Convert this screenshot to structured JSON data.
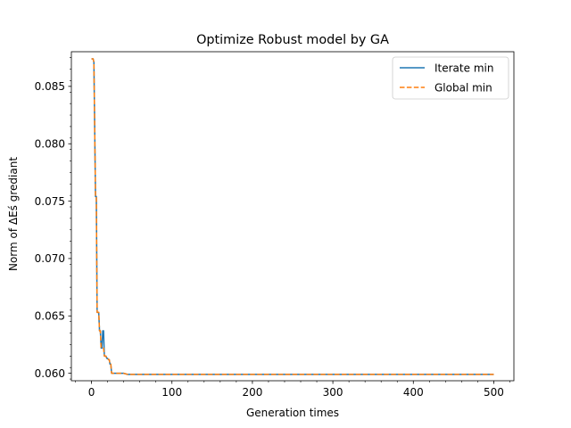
{
  "chart_data": {
    "type": "line",
    "title": "Optimize Robust model by GA",
    "xlabel": "Generation times",
    "ylabel": "Norm of ΔEś grediant",
    "xlim": [
      -25,
      525
    ],
    "ylim": [
      0.05935,
      0.08802
    ],
    "xticks": [
      0,
      100,
      200,
      300,
      400,
      500
    ],
    "xtick_labels": [
      "0",
      "100",
      "200",
      "300",
      "400",
      "500"
    ],
    "yticks": [
      0.06,
      0.065,
      0.07,
      0.075,
      0.08,
      0.085
    ],
    "ytick_labels": [
      "0.060",
      "0.065",
      "0.070",
      "0.075",
      "0.080",
      "0.085"
    ],
    "grid": false,
    "legend_position": "upper right",
    "series": [
      {
        "name": "Iterate min",
        "color": "#1f77b4",
        "style": "solid",
        "x": [
          0,
          2,
          3,
          5,
          6,
          7,
          8,
          9,
          10,
          11,
          12,
          13,
          14,
          15,
          16,
          17,
          18,
          19,
          20,
          21,
          22,
          23,
          24,
          25,
          30,
          35,
          40,
          45,
          500
        ],
        "y": [
          0.0874,
          0.0874,
          0.0871,
          0.0754,
          0.0754,
          0.0653,
          0.0653,
          0.0653,
          0.0637,
          0.0637,
          0.0622,
          0.0622,
          0.0637,
          0.0637,
          0.0615,
          0.0615,
          0.0615,
          0.0613,
          0.0613,
          0.0612,
          0.0612,
          0.0608,
          0.0608,
          0.06,
          0.06,
          0.06,
          0.06,
          0.0599,
          0.0599
        ]
      },
      {
        "name": "Global min",
        "color": "#ff7f0e",
        "style": "dashed",
        "x": [
          0,
          2,
          3,
          5,
          6,
          7,
          8,
          9,
          10,
          11,
          12,
          13,
          14,
          15,
          16,
          17,
          18,
          19,
          20,
          21,
          22,
          23,
          24,
          25,
          30,
          35,
          40,
          45,
          500
        ],
        "y": [
          0.0874,
          0.0874,
          0.0871,
          0.0754,
          0.0754,
          0.0653,
          0.0653,
          0.0653,
          0.0637,
          0.0637,
          0.0622,
          0.0622,
          0.0622,
          0.0622,
          0.0615,
          0.0615,
          0.0615,
          0.0613,
          0.0613,
          0.0612,
          0.0612,
          0.0608,
          0.0608,
          0.06,
          0.06,
          0.06,
          0.06,
          0.0599,
          0.0599
        ]
      }
    ]
  }
}
